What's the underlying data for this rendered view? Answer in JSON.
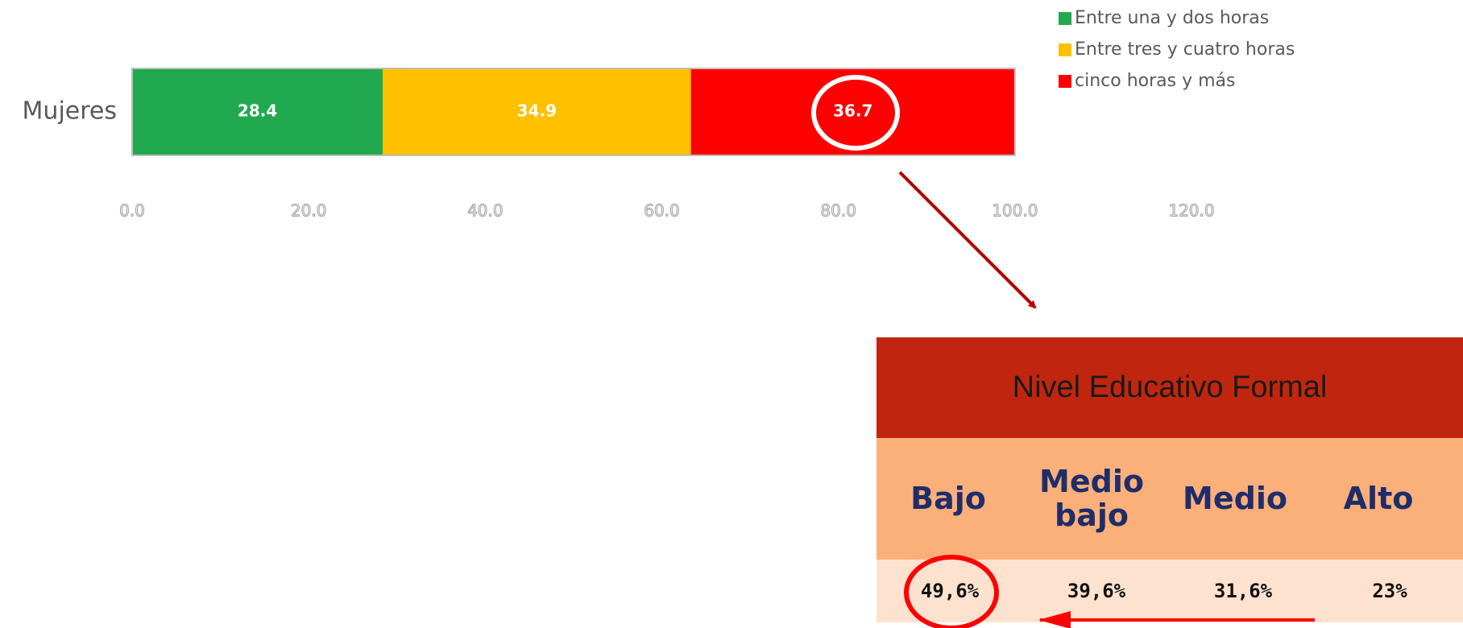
{
  "chart_data": {
    "type": "stacked_barh",
    "categories": [
      "Mujeres"
    ],
    "series": [
      {
        "name": "Entre una y dos horas",
        "color": "#21a94f",
        "values": [
          28.4
        ]
      },
      {
        "name": "Entre tres y cuatro horas",
        "color": "#ffc000",
        "values": [
          34.9
        ]
      },
      {
        "name": "cinco horas y más",
        "color": "#ff0000",
        "values": [
          36.7
        ]
      }
    ],
    "xlim": [
      0,
      120
    ],
    "xticks": [
      {
        "value": 0,
        "label": "0.0"
      },
      {
        "value": 20,
        "label": "20.0"
      },
      {
        "value": 40,
        "label": "40.0"
      },
      {
        "value": 60,
        "label": "60.0"
      },
      {
        "value": 80,
        "label": "80.0"
      },
      {
        "value": 100,
        "label": "100.0"
      },
      {
        "value": 120,
        "label": "120.0"
      }
    ],
    "legend": "top-right"
  },
  "table": {
    "title": "Nivel Educativo Formal",
    "headers": [
      "Bajo",
      "Medio bajo",
      "Medio",
      "Alto"
    ],
    "rows": [
      [
        "49,6%",
        "39,6%",
        "31,6%",
        "23%"
      ]
    ]
  }
}
